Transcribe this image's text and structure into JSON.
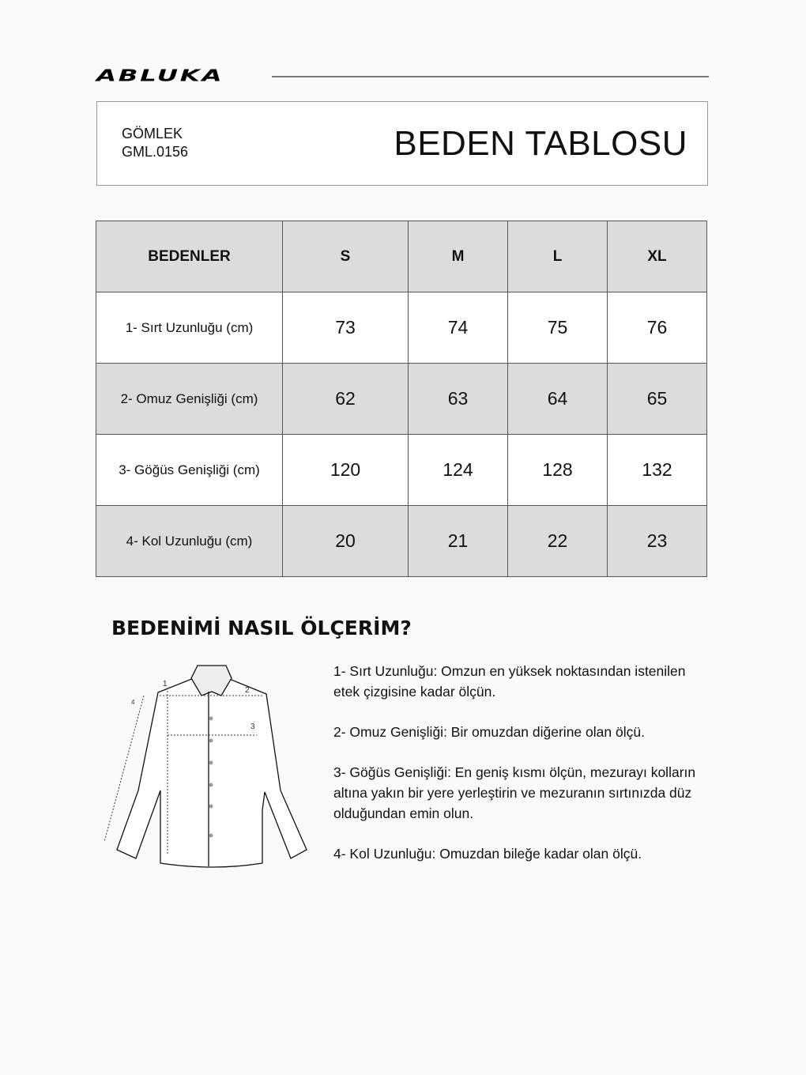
{
  "brand": "ABLUKA",
  "header": {
    "category": "GÖMLEK",
    "code": "GML.0156",
    "title": "BEDEN TABLOSU"
  },
  "table": {
    "headers": [
      "BEDENLER",
      "S",
      "M",
      "L",
      "XL"
    ],
    "rows": [
      {
        "label": "1- Sırt Uzunluğu (cm)",
        "values": [
          "73",
          "74",
          "75",
          "76"
        ]
      },
      {
        "label": "2- Omuz Genişliği (cm)",
        "values": [
          "62",
          "63",
          "64",
          "65"
        ]
      },
      {
        "label": "3- Göğüs Genişliği (cm)",
        "values": [
          "120",
          "124",
          "128",
          "132"
        ]
      },
      {
        "label": "4- Kol Uzunluğu (cm)",
        "values": [
          "20",
          "21",
          "22",
          "23"
        ]
      }
    ]
  },
  "howto": {
    "title": "BEDENİMİ NASIL ÖLÇERİM?",
    "diagram_labels": [
      "1",
      "2",
      "3",
      "4"
    ],
    "items": [
      "1- Sırt Uzunluğu: Omzun en yüksek noktasından istenilen etek çizgisine kadar ölçün.",
      "2- Omuz Genişliği: Bir omuzdan diğerine olan ölçü.",
      "3- Göğüs Genişliği: En geniş kısmı ölçün, mezurayı kolların altına yakın bir yere yerleştirin ve mezuranın sırtınızda düz olduğundan emin olun.",
      "4- Kol Uzunluğu: Omuzdan bileğe kadar olan ölçü."
    ]
  }
}
